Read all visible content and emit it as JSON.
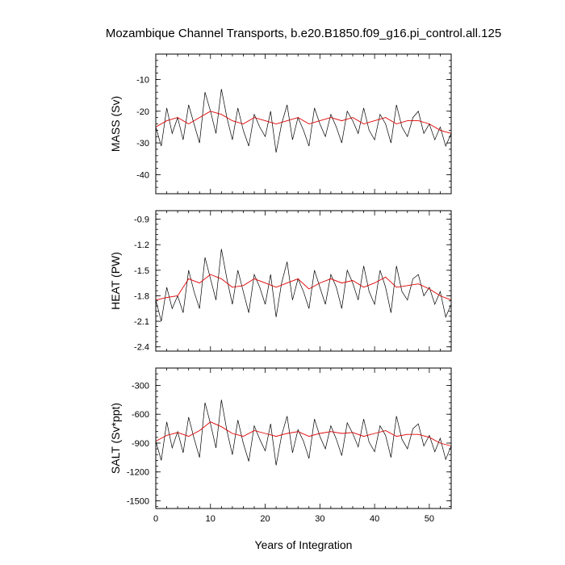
{
  "title": "Mozambique Channel Transports, b.e20.B1850.f09_g16.pi_control.all.125",
  "xlabel": "Years of Integration",
  "x_ticks": [
    "0",
    "10",
    "20",
    "30",
    "40",
    "50"
  ],
  "colors": {
    "raw_series": "#000000",
    "smoothed_series": "#e00000"
  },
  "chart_data": [
    {
      "type": "line",
      "ylabel": "MASS (Sv)",
      "xlim": [
        0,
        54
      ],
      "ylim": [
        -46,
        -2
      ],
      "y_ticks": [
        "-10",
        "-20",
        "-30",
        "-40"
      ],
      "y_tick_values": [
        -10,
        -20,
        -30,
        -40
      ],
      "series": [
        {
          "role": "monthly",
          "x": [
            0,
            1,
            2,
            3,
            4,
            5,
            6,
            7,
            8,
            9,
            10,
            11,
            12,
            13,
            14,
            15,
            16,
            17,
            18,
            19,
            20,
            21,
            22,
            23,
            24,
            25,
            26,
            27,
            28,
            29,
            30,
            31,
            32,
            33,
            34,
            35,
            36,
            37,
            38,
            39,
            40,
            41,
            42,
            43,
            44,
            45,
            46,
            47,
            48,
            49,
            50,
            51,
            52,
            53,
            54
          ],
          "values": [
            -25,
            -31,
            -19,
            -27,
            -22,
            -29,
            -18,
            -24,
            -30,
            -14,
            -20,
            -27,
            -13,
            -22,
            -29,
            -19,
            -26,
            -31,
            -21,
            -25,
            -28,
            -20,
            -33,
            -24,
            -18,
            -29,
            -22,
            -26,
            -31,
            -19,
            -24,
            -28,
            -21,
            -25,
            -30,
            -20,
            -23,
            -27,
            -19,
            -26,
            -29,
            -21,
            -24,
            -30,
            -18,
            -25,
            -28,
            -22,
            -20,
            -27,
            -24,
            -29,
            -25,
            -31,
            -27
          ]
        },
        {
          "role": "annual-mean",
          "x": [
            0,
            2,
            4,
            6,
            8,
            10,
            12,
            14,
            16,
            18,
            20,
            22,
            24,
            26,
            28,
            30,
            32,
            34,
            36,
            38,
            40,
            42,
            44,
            46,
            48,
            50,
            52,
            54
          ],
          "values": [
            -25,
            -23,
            -22,
            -24,
            -22,
            -20,
            -21,
            -23,
            -24,
            -22,
            -23,
            -24,
            -23,
            -22,
            -24,
            -23,
            -22,
            -23,
            -22,
            -24,
            -23,
            -22,
            -24,
            -23,
            -23,
            -24,
            -26,
            -27
          ]
        }
      ]
    },
    {
      "type": "line",
      "ylabel": "HEAT (PW)",
      "xlim": [
        0,
        54
      ],
      "ylim": [
        -2.45,
        -0.8
      ],
      "y_ticks": [
        "-0.9",
        "-1.2",
        "-1.5",
        "-1.8",
        "-2.1",
        "-2.4"
      ],
      "y_tick_values": [
        -0.9,
        -1.2,
        -1.5,
        -1.8,
        -2.1,
        -2.4
      ],
      "series": [
        {
          "role": "monthly",
          "x": [
            0,
            1,
            2,
            3,
            4,
            5,
            6,
            7,
            8,
            9,
            10,
            11,
            12,
            13,
            14,
            15,
            16,
            17,
            18,
            19,
            20,
            21,
            22,
            23,
            24,
            25,
            26,
            27,
            28,
            29,
            30,
            31,
            32,
            33,
            34,
            35,
            36,
            37,
            38,
            39,
            40,
            41,
            42,
            43,
            44,
            45,
            46,
            47,
            48,
            49,
            50,
            51,
            52,
            53,
            54
          ],
          "values": [
            -1.85,
            -2.1,
            -1.7,
            -1.95,
            -1.8,
            -2.0,
            -1.5,
            -1.75,
            -1.95,
            -1.35,
            -1.6,
            -1.85,
            -1.25,
            -1.6,
            -1.9,
            -1.5,
            -1.75,
            -2.0,
            -1.55,
            -1.7,
            -1.9,
            -1.55,
            -2.05,
            -1.65,
            -1.4,
            -1.85,
            -1.6,
            -1.75,
            -1.95,
            -1.5,
            -1.7,
            -1.9,
            -1.55,
            -1.7,
            -1.95,
            -1.5,
            -1.65,
            -1.85,
            -1.45,
            -1.75,
            -1.9,
            -1.5,
            -1.7,
            -2.0,
            -1.45,
            -1.75,
            -1.85,
            -1.6,
            -1.55,
            -1.8,
            -1.7,
            -1.9,
            -1.75,
            -2.05,
            -1.9
          ]
        },
        {
          "role": "annual-mean",
          "x": [
            0,
            2,
            4,
            6,
            8,
            10,
            12,
            14,
            16,
            18,
            20,
            22,
            24,
            26,
            28,
            30,
            32,
            34,
            36,
            38,
            40,
            42,
            44,
            46,
            48,
            50,
            52,
            54
          ],
          "values": [
            -1.85,
            -1.82,
            -1.8,
            -1.6,
            -1.65,
            -1.55,
            -1.6,
            -1.7,
            -1.68,
            -1.6,
            -1.65,
            -1.7,
            -1.65,
            -1.6,
            -1.72,
            -1.65,
            -1.6,
            -1.65,
            -1.62,
            -1.7,
            -1.65,
            -1.58,
            -1.7,
            -1.68,
            -1.66,
            -1.72,
            -1.8,
            -1.85
          ]
        }
      ]
    },
    {
      "type": "line",
      "ylabel": "SALT (Sv*ppt)",
      "xlim": [
        0,
        54
      ],
      "ylim": [
        -1580,
        -120
      ],
      "y_ticks": [
        "-300",
        "-600",
        "-900",
        "-1200",
        "-1500"
      ],
      "y_tick_values": [
        -300,
        -600,
        -900,
        -1200,
        -1500
      ],
      "series": [
        {
          "role": "monthly",
          "x": [
            0,
            1,
            2,
            3,
            4,
            5,
            6,
            7,
            8,
            9,
            10,
            11,
            12,
            13,
            14,
            15,
            16,
            17,
            18,
            19,
            20,
            21,
            22,
            23,
            24,
            25,
            26,
            27,
            28,
            29,
            30,
            31,
            32,
            33,
            34,
            35,
            36,
            37,
            38,
            39,
            40,
            41,
            42,
            43,
            44,
            45,
            46,
            47,
            48,
            49,
            50,
            51,
            52,
            53,
            54
          ],
          "values": [
            -880,
            -1080,
            -680,
            -950,
            -780,
            -1000,
            -630,
            -850,
            -1050,
            -480,
            -700,
            -950,
            -450,
            -770,
            -1020,
            -660,
            -900,
            -1090,
            -720,
            -860,
            -980,
            -700,
            -1130,
            -820,
            -620,
            -1000,
            -760,
            -880,
            -1060,
            -650,
            -830,
            -960,
            -720,
            -860,
            -1030,
            -690,
            -800,
            -940,
            -650,
            -890,
            -990,
            -720,
            -820,
            -1050,
            -620,
            -860,
            -960,
            -750,
            -700,
            -930,
            -820,
            -990,
            -850,
            -1070,
            -930
          ]
        },
        {
          "role": "annual-mean",
          "x": [
            0,
            2,
            4,
            6,
            8,
            10,
            12,
            14,
            16,
            18,
            20,
            22,
            24,
            26,
            28,
            30,
            32,
            34,
            36,
            38,
            40,
            42,
            44,
            46,
            48,
            50,
            52,
            54
          ],
          "values": [
            -880,
            -820,
            -790,
            -830,
            -770,
            -680,
            -730,
            -800,
            -830,
            -770,
            -800,
            -830,
            -800,
            -780,
            -830,
            -800,
            -780,
            -800,
            -790,
            -830,
            -800,
            -770,
            -830,
            -810,
            -810,
            -840,
            -900,
            -930
          ]
        }
      ]
    }
  ]
}
